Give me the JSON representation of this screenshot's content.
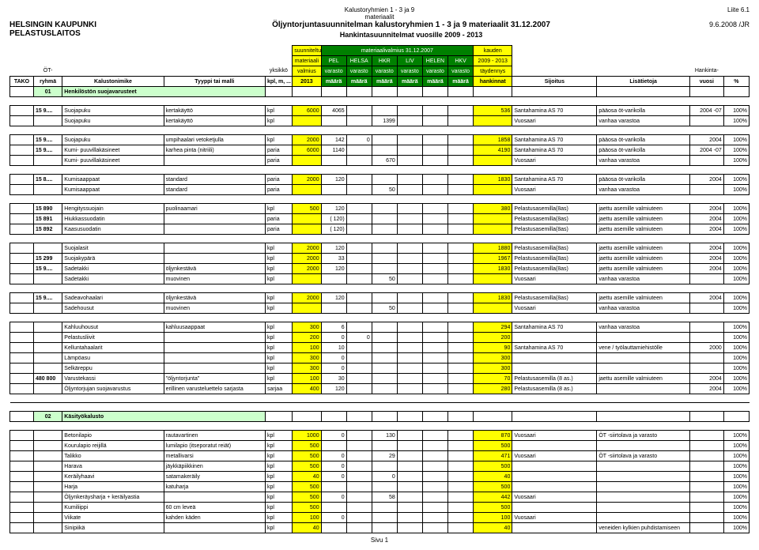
{
  "meta": {
    "top_center_line1": "Kalustoryhmien 1 - 3 ja 9",
    "top_center_line2": "materiaalit",
    "liite": "Liite 6.1",
    "org1": "HELSINGIN KAUPUNKI",
    "org2": "PELASTUSLAITOS",
    "title": "Öljyntorjuntasuunnitelman kalustoryhmien 1 - 3 ja 9 materiaalit 31.12.2007",
    "date": "9.6.2008 /JR",
    "subtitle": "Hankintasuunnitelmat vuosille 2009 - 2013",
    "footer": "Sivu 1"
  },
  "columns": {
    "top_labels": {
      "suunniteltu": "suunniteltu",
      "materiaali": "materiaali",
      "valmius": "valmius",
      "mat_valmius": "materiaalivalmius 31.12.2007",
      "pel": "PEL",
      "helsa": "HELSA",
      "hkr": "HKR",
      "liv": "LIV",
      "helen": "HELEN",
      "hkv": "HKV",
      "kauden": "kauden",
      "range": "2009 - 2013",
      "taydennys": "täydennys",
      "hankinnat": "hankinnat",
      "hankinta": "Hankinta-"
    },
    "headers": {
      "tako": "TAKO",
      "ot": "ÖT-",
      "ryhma": "ryhmä",
      "kalustonimike": "Kalustonimike",
      "tyyppi": "Tyyppi tai malli",
      "yksikko": "yksikkö",
      "kplm": "kpl, m, ...",
      "v2013": "2013",
      "maara": "määrä",
      "varasto": "varasto",
      "sijoitus": "Sijoitus",
      "lisa": "Lisätietoja",
      "vuosi": "vuosi",
      "pct": "%"
    }
  },
  "sections": {
    "s01": {
      "code": "01",
      "title": "Henkilöstön suojavarusteet"
    },
    "s02": {
      "code": "02",
      "title": "Käsityökalusto"
    }
  },
  "rows": [
    {
      "r": "15 9....",
      "n": "Suojapuku",
      "t": "kertakäyttö",
      "u": "kpl",
      "v": "6000",
      "m": [
        "4065",
        "",
        "",
        "",
        "",
        ""
      ],
      "h": "536",
      "s": "Santahamina AS 70",
      "l": "pääosa öt-varikolla",
      "vu": "2004 -07",
      "p": "100%"
    },
    {
      "r": "",
      "n": "Suojapuku",
      "t": "kertakäyttö",
      "u": "kpl",
      "v": "",
      "m": [
        "",
        "",
        "1399",
        "",
        "",
        ""
      ],
      "h": "",
      "s": "Vuosaari",
      "l": "vanhaa varastoa",
      "vu": "",
      "p": "100%"
    },
    {
      "spacer": true
    },
    {
      "r": "15 9....",
      "n": "Suojapuku",
      "t": "umpihaalari vetoketjulla",
      "u": "kpl",
      "v": "2000",
      "m": [
        "142",
        "0",
        "",
        "",
        "",
        ""
      ],
      "h": "1858",
      "s": "Santahamina AS 70",
      "l": "pääosa öt-varikolla",
      "vu": "2004",
      "p": "100%"
    },
    {
      "r": "15 9....",
      "n": "Kumi- puuvillakäsineet",
      "t": "karhea pinta (nitriili)",
      "u": "paria",
      "v": "6000",
      "m": [
        "1140",
        "",
        "",
        "",
        "",
        ""
      ],
      "h": "4190",
      "s": "Santahamina AS 70",
      "l": "pääosa öt-varikolla",
      "vu": "2004 -07",
      "p": "100%"
    },
    {
      "r": "",
      "n": "Kumi- puuvillakäsineet",
      "t": "",
      "u": "paria",
      "v": "",
      "m": [
        "",
        "",
        "670",
        "",
        "",
        ""
      ],
      "h": "",
      "s": "Vuosaari",
      "l": "vanhaa varastoa",
      "vu": "",
      "p": "100%"
    },
    {
      "spacer": true
    },
    {
      "r": "15 8....",
      "n": "Kumisaappaat",
      "t": "standard",
      "u": "paria",
      "v": "2000",
      "m": [
        "120",
        "",
        "",
        "",
        "",
        ""
      ],
      "h": "1830",
      "s": "Santahamina AS 70",
      "l": "pääosa öt-varikolla",
      "vu": "2004",
      "p": "100%"
    },
    {
      "r": "",
      "n": "Kumisaappaat",
      "t": "standard",
      "u": "paria",
      "v": "",
      "m": [
        "",
        "",
        "50",
        "",
        "",
        ""
      ],
      "h": "",
      "s": "Vuosaari",
      "l": "vanhaa varastoa",
      "vu": "",
      "p": "100%"
    },
    {
      "spacer": true
    },
    {
      "r": "15 890",
      "n": "Hengityssuojain",
      "t": "puolinaamari",
      "u": "kpl",
      "v": "500",
      "m": [
        "120",
        "",
        "",
        "",
        "",
        ""
      ],
      "h": "380",
      "s": "Pelastusasemilla(8as)",
      "l": "jaettu asemille valmiuteen",
      "vu": "2004",
      "p": "100%"
    },
    {
      "r": "15 891",
      "n": "Hiukkassuodatin",
      "t": "",
      "u": "paria",
      "v": "",
      "m": [
        "( 120)",
        "",
        "",
        "",
        "",
        ""
      ],
      "h": "",
      "s": "Pelastusasemilla(8as)",
      "l": "jaettu asemille valmiuteen",
      "vu": "2004",
      "p": "100%"
    },
    {
      "r": "15 892",
      "n": "Kaasusuodatin",
      "t": "",
      "u": "paria",
      "v": "",
      "m": [
        "( 120)",
        "",
        "",
        "",
        "",
        ""
      ],
      "h": "",
      "s": "Pelastusasemilla(8as)",
      "l": "jaettu asemille valmiuteen",
      "vu": "2004",
      "p": "100%"
    },
    {
      "spacer": true
    },
    {
      "r": "",
      "n": "Suojalasit",
      "t": "",
      "u": "kpl",
      "v": "2000",
      "m": [
        "120",
        "",
        "",
        "",
        "",
        ""
      ],
      "h": "1880",
      "s": "Pelastusasemilla(8as)",
      "l": "jaettu asemille valmiuteen",
      "vu": "2004",
      "p": "100%"
    },
    {
      "r": "15 299",
      "n": "Suojakypärä",
      "t": "",
      "u": "kpl",
      "v": "2000",
      "m": [
        "33",
        "",
        "",
        "",
        "",
        ""
      ],
      "h": "1967",
      "s": "Pelastusasemilla(8as)",
      "l": "jaettu asemille valmiuteen",
      "vu": "2004",
      "p": "100%"
    },
    {
      "r": "15 9....",
      "n": "Sadetakki",
      "t": "öljynkestävä",
      "u": "kpl",
      "v": "2000",
      "m": [
        "120",
        "",
        "",
        "",
        "",
        ""
      ],
      "h": "1830",
      "s": "Pelastusasemilla(8as)",
      "l": "jaettu asemille valmiuteen",
      "vu": "2004",
      "p": "100%"
    },
    {
      "r": "",
      "n": "Sadetakki",
      "t": "muovinen",
      "u": "kpl",
      "v": "",
      "m": [
        "",
        "",
        "50",
        "",
        "",
        ""
      ],
      "h": "",
      "s": "Vuosaari",
      "l": "vanhaa varastoa",
      "vu": "",
      "p": "100%"
    },
    {
      "spacer": true
    },
    {
      "r": "15 9....",
      "n": "Sadeavohaalari",
      "t": "öljynkestävä",
      "u": "kpl",
      "v": "2000",
      "m": [
        "120",
        "",
        "",
        "",
        "",
        ""
      ],
      "h": "1830",
      "s": "Pelastusasemilla(8as)",
      "l": "jaettu asemille valmiuteen",
      "vu": "2004",
      "p": "100%"
    },
    {
      "r": "",
      "n": "Sadehousut",
      "t": "muovinen",
      "u": "kpl",
      "v": "",
      "m": [
        "",
        "",
        "50",
        "",
        "",
        ""
      ],
      "h": "",
      "s": "Vuosaari",
      "l": "vanhaa varastoa",
      "vu": "",
      "p": "100%"
    },
    {
      "spacer": true
    },
    {
      "r": "",
      "n": "Kahluuhousut",
      "t": "kahluusaappaat",
      "u": "kpl",
      "v": "300",
      "m": [
        "6",
        "",
        "",
        "",
        "",
        ""
      ],
      "h": "294",
      "s": "Santahamina AS 70",
      "l": "vanhaa varastoa",
      "vu": "",
      "p": "100%"
    },
    {
      "r": "",
      "n": "Pelastusliivit",
      "t": "",
      "u": "kpl",
      "v": "200",
      "m": [
        "0",
        "0",
        "",
        "",
        "",
        ""
      ],
      "h": "200",
      "s": "",
      "l": "",
      "vu": "",
      "p": "100%"
    },
    {
      "r": "",
      "n": "Kelluntahaalarit",
      "t": "",
      "u": "kpl",
      "v": "100",
      "m": [
        "10",
        "",
        "",
        "",
        "",
        ""
      ],
      "h": "90",
      "s": "Santahamina AS 70",
      "l": "vene / työlauttamiehistölle",
      "vu": "2000",
      "p": "100%"
    },
    {
      "r": "",
      "n": "Lämpöasu",
      "t": "",
      "u": "kpl",
      "v": "300",
      "m": [
        "0",
        "",
        "",
        "",
        "",
        ""
      ],
      "h": "300",
      "s": "",
      "l": "",
      "vu": "",
      "p": "100%"
    },
    {
      "r": "",
      "n": "Selkäreppu",
      "t": "",
      "u": "kpl",
      "v": "300",
      "m": [
        "0",
        "",
        "",
        "",
        "",
        ""
      ],
      "h": "300",
      "s": "",
      "l": "",
      "vu": "",
      "p": "100%"
    },
    {
      "r": "480 800",
      "n": "Varustekassi",
      "t": "\"öljyntorjunta\"",
      "u": "kpl",
      "v": "100",
      "m": [
        "30",
        "",
        "",
        "",
        "",
        ""
      ],
      "h": "70",
      "s": "Pelastusasemilla (8 as.)",
      "l": "jaettu asemille valmiuteen",
      "vu": "2004",
      "p": "100%"
    },
    {
      "r": "",
      "n": "Öljyntorjujan suojavarustus",
      "t": "erillinen varusteluettelo sarjasta",
      "u": "sarjaa",
      "v": "400",
      "m": [
        "120",
        "",
        "",
        "",
        "",
        ""
      ],
      "h": "280",
      "s": "Pelastusasemilla (8 as.)",
      "l": "",
      "vu": "2004",
      "p": "100%"
    },
    {
      "spacer": true
    }
  ],
  "rows2": [
    {
      "r": "",
      "n": "Betonilapio",
      "t": "rautavartinen",
      "u": "kpl",
      "v": "1000",
      "m": [
        "0",
        "",
        "130",
        "",
        "",
        ""
      ],
      "h": "870",
      "s": "Vuosaari",
      "l": "ÖT -siirtolava ja varasto",
      "vu": "",
      "p": "100%"
    },
    {
      "r": "",
      "n": "Kourulapio reijillä",
      "t": "lumilapio (itseporatut reiät)",
      "u": "kpl",
      "v": "500",
      "m": [
        "",
        "",
        "",
        "",
        "",
        ""
      ],
      "h": "500",
      "s": "",
      "l": "",
      "vu": "",
      "p": "100%"
    },
    {
      "r": "",
      "n": "Talikko",
      "t": "metallivarsi",
      "u": "kpl",
      "v": "500",
      "m": [
        "0",
        "",
        "29",
        "",
        "",
        ""
      ],
      "h": "471",
      "s": "Vuosaari",
      "l": "ÖT -siirtolava ja varasto",
      "vu": "",
      "p": "100%"
    },
    {
      "r": "",
      "n": "Harava",
      "t": "jäykkäpiikkinen",
      "u": "kpl",
      "v": "500",
      "m": [
        "0",
        "",
        "",
        "",
        "",
        ""
      ],
      "h": "500",
      "s": "",
      "l": "",
      "vu": "",
      "p": "100%"
    },
    {
      "r": "",
      "n": "Keräilyhaavi",
      "t": "satamakeräily",
      "u": "kpl",
      "v": "40",
      "m": [
        "0",
        "",
        "0",
        "",
        "",
        ""
      ],
      "h": "40",
      "s": "",
      "l": "",
      "vu": "",
      "p": "100%"
    },
    {
      "r": "",
      "n": "Harja",
      "t": "katuharja",
      "u": "kpl",
      "v": "500",
      "m": [
        "",
        "",
        "",
        "",
        "",
        ""
      ],
      "h": "500",
      "s": "",
      "l": "",
      "vu": "",
      "p": "100%"
    },
    {
      "r": "",
      "n": "Öljynkeräysharja + keräilyastia",
      "t": "",
      "u": "kpl",
      "v": "500",
      "m": [
        "0",
        "",
        "58",
        "",
        "",
        ""
      ],
      "h": "442",
      "s": "Vuosaari",
      "l": "",
      "vu": "",
      "p": "100%"
    },
    {
      "r": "",
      "n": "Kumiliippi",
      "t": "60 cm leveä",
      "u": "kpl",
      "v": "500",
      "m": [
        "",
        "",
        "",
        "",
        "",
        ""
      ],
      "h": "500",
      "s": "",
      "l": "",
      "vu": "",
      "p": "100%"
    },
    {
      "r": "",
      "n": "Viikate",
      "t": "kahden käden",
      "u": "kpl",
      "v": "100",
      "m": [
        "0",
        "",
        "",
        "",
        "",
        ""
      ],
      "h": "100",
      "s": "Vuosaari",
      "l": "",
      "vu": "",
      "p": "100%"
    },
    {
      "r": "",
      "n": "Sinipiikä",
      "t": "",
      "u": "kpl",
      "v": "40",
      "m": [
        "",
        "",
        "",
        "",
        "",
        ""
      ],
      "h": "40",
      "s": "",
      "l": "veneiden kylkien puhdistamiseen",
      "vu": "",
      "p": "100%"
    }
  ],
  "colors": {
    "yellow": "#ffff00",
    "darkgreen": "#008000",
    "lightgreen": "#ccffcc"
  }
}
